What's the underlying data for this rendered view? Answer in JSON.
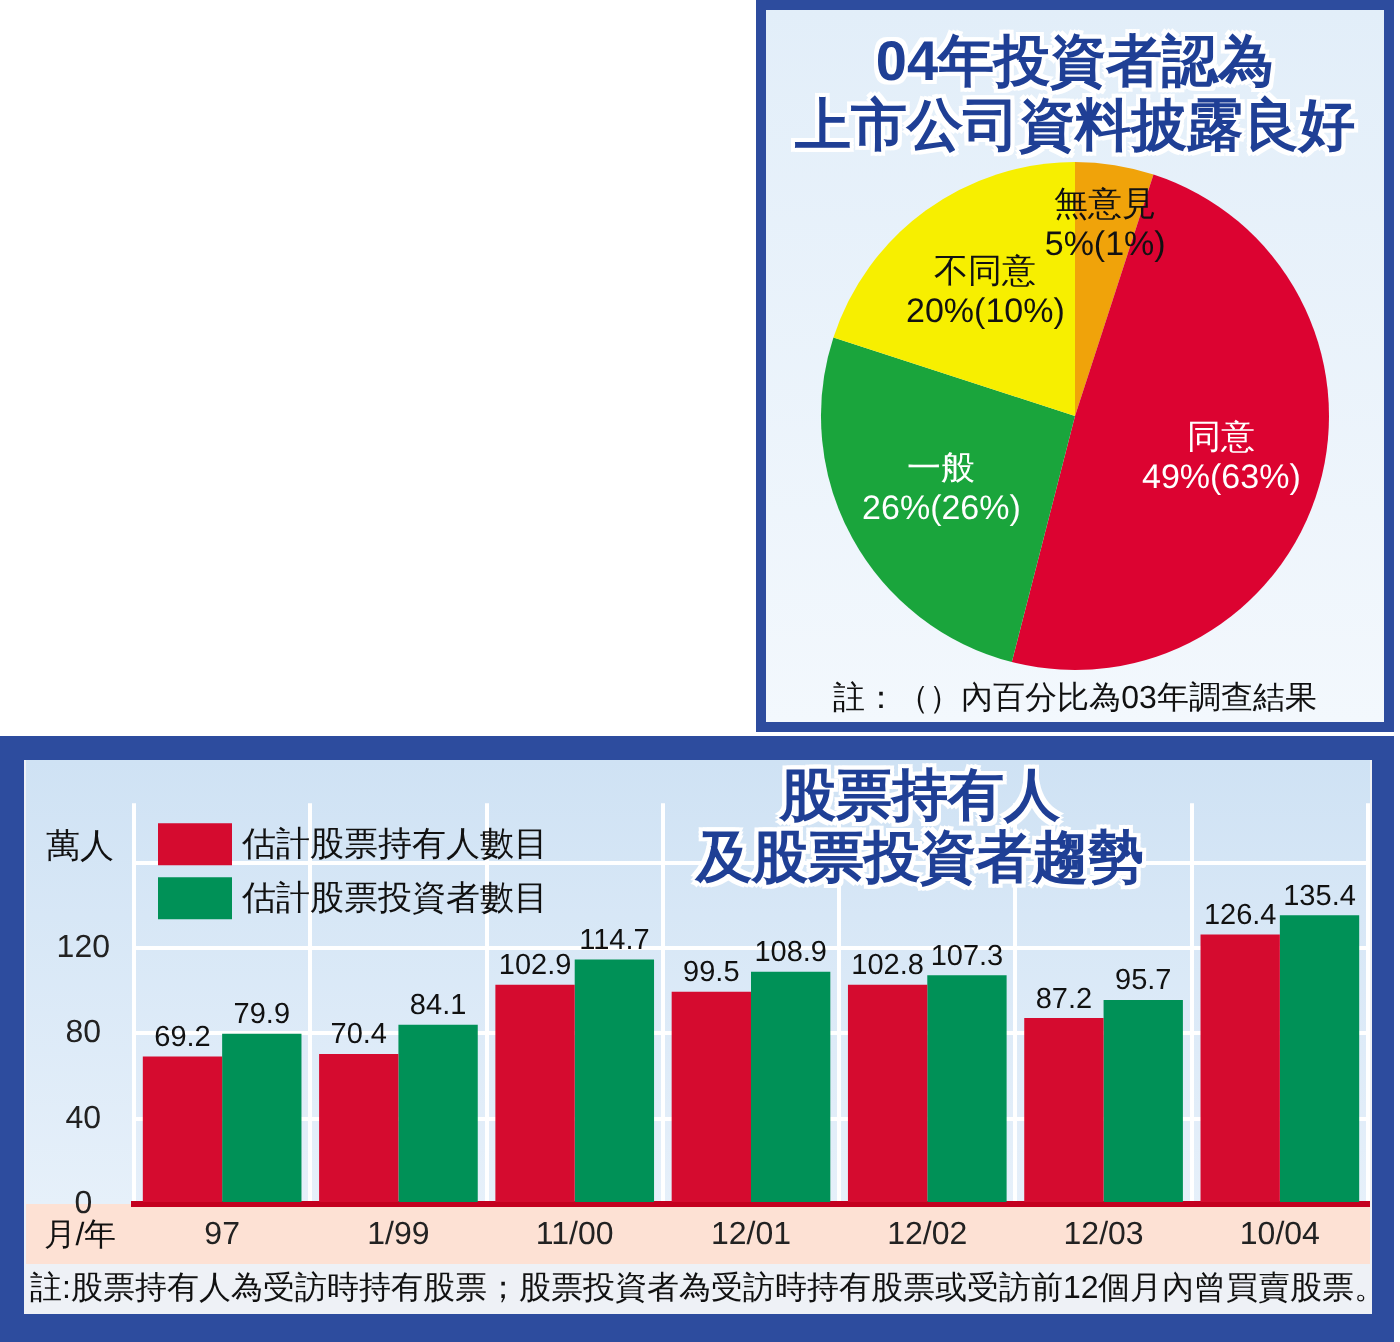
{
  "chart_data": [
    {
      "type": "pie",
      "title": "04年投資者認為上市公司資料披露良好",
      "categories": [
        "無意見",
        "同意",
        "一般",
        "不同意"
      ],
      "values": [
        5,
        49,
        26,
        20
      ],
      "colors": [
        "#f0a30a",
        "#dc0331",
        "#1aa53c",
        "#f7ef00"
      ],
      "value_labels": [
        "5%(1%)",
        "49%(63%)",
        "26%(26%)",
        "20%(10%)"
      ],
      "annotations": [
        "註：（）內百分比為03年調查結果"
      ]
    },
    {
      "type": "bar",
      "title": "股票持有人及股票投資者趨勢",
      "xlabel": "月/年",
      "ylabel": "萬人",
      "categories": [
        "97",
        "1/99",
        "11/00",
        "12/01",
        "12/02",
        "12/03",
        "10/04"
      ],
      "series": [
        {
          "name": "估計股票持有人數目",
          "color": "#d50b2f",
          "values": [
            69.2,
            70.4,
            102.9,
            99.5,
            102.8,
            87.2,
            126.4
          ]
        },
        {
          "name": "估計股票投資者數目",
          "color": "#009157",
          "values": [
            79.9,
            84.1,
            114.7,
            108.9,
            107.3,
            95.7,
            135.4
          ]
        }
      ],
      "ylim": [
        0,
        188
      ],
      "yticks": [
        0,
        40,
        80,
        120,
        {
          "value": 160,
          "label": null
        }
      ],
      "grid": true,
      "legend": "top left",
      "data_labels": true,
      "annotations": [
        "註:股票持有人為受訪時持有股票；股票投資者為受訪時持有股票或受訪前12個月內曾買賣股票。"
      ]
    }
  ]
}
